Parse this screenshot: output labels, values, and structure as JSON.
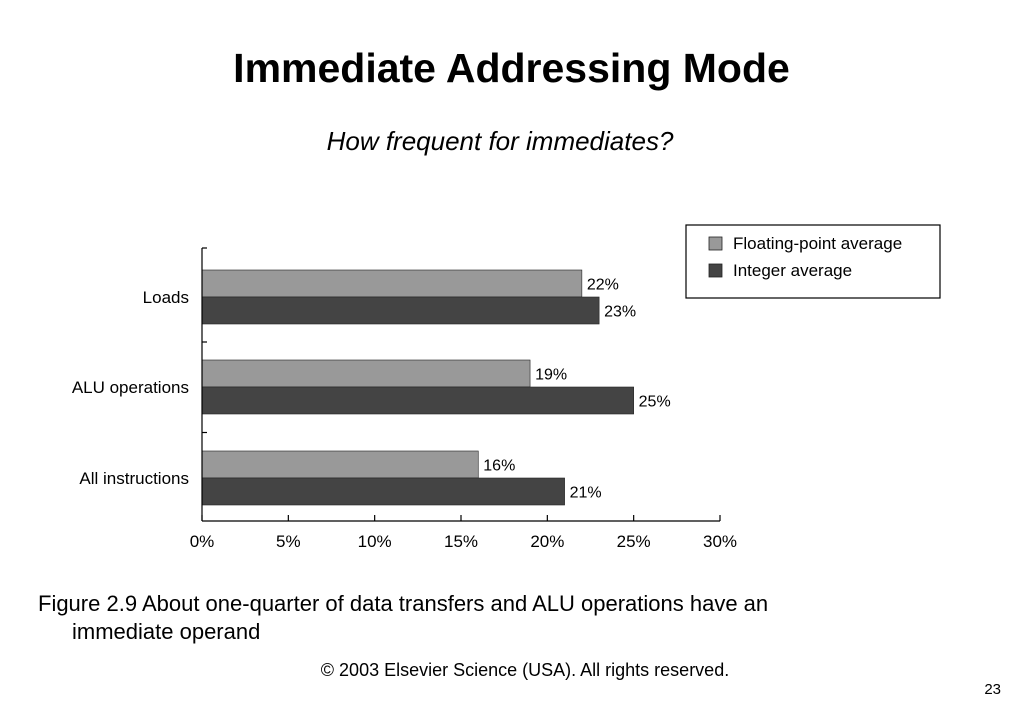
{
  "slide": {
    "title": "Immediate Addressing Mode",
    "subtitle": "How frequent for immediates?",
    "caption_line1": "Figure 2.9 About one-quarter of data transfers and ALU operations have an",
    "caption_line2": "immediate operand",
    "copyright": "© 2003 Elsevier Science (USA). All rights reserved.",
    "page_number": "23"
  },
  "chart_data": {
    "type": "bar",
    "orientation": "horizontal",
    "categories": [
      "Loads",
      "ALU operations",
      "All instructions"
    ],
    "series": [
      {
        "name": "Floating-point average",
        "values": [
          22,
          19,
          16
        ],
        "color": "#999999"
      },
      {
        "name": "Integer average",
        "values": [
          23,
          25,
          21
        ],
        "color": "#444444"
      }
    ],
    "value_labels": [
      [
        "22%",
        "19%",
        "16%"
      ],
      [
        "23%",
        "25%",
        "21%"
      ]
    ],
    "xlim": [
      0,
      30
    ],
    "x_ticks": [
      0,
      5,
      10,
      15,
      20,
      25,
      30
    ],
    "x_tick_labels": [
      "0%",
      "5%",
      "10%",
      "15%",
      "20%",
      "25%",
      "30%"
    ],
    "legend_position": "top-right",
    "grid": false
  }
}
